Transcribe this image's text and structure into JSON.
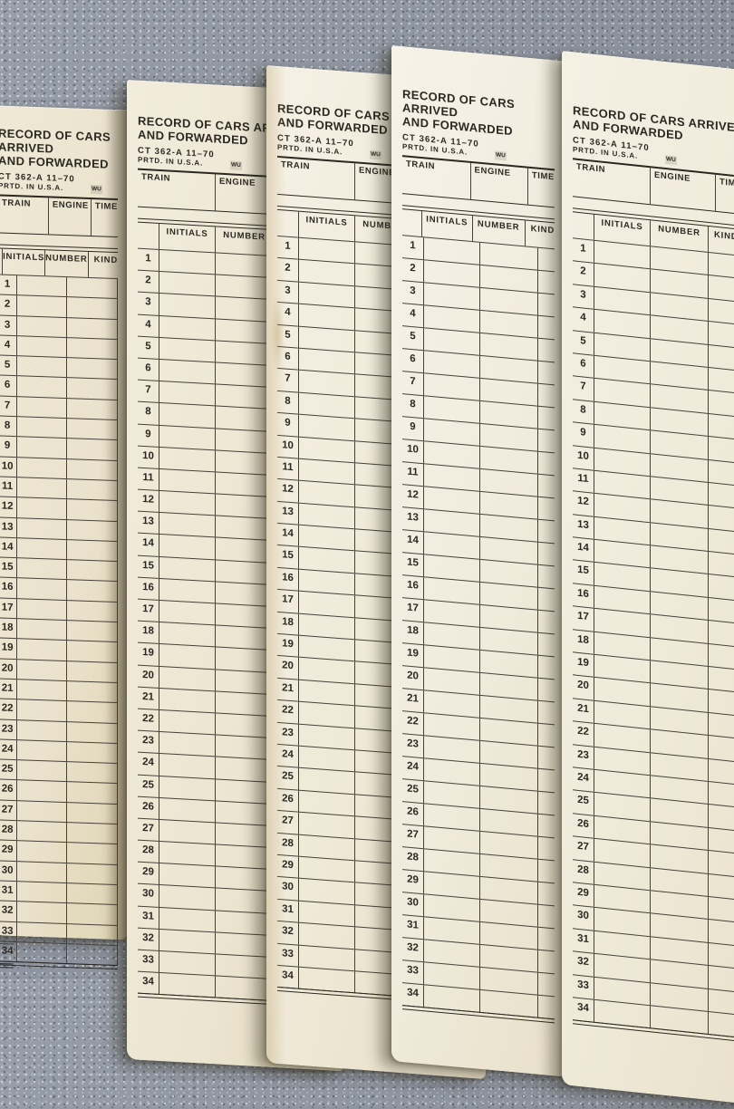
{
  "form": {
    "title_line1": "RECORD OF CARS ARRIVED",
    "title_line2": "AND FORWARDED",
    "form_number": "CT 362-A  11–70",
    "printed_in": "PRTD. IN U.S.A.",
    "union_mark": "WU",
    "fields": {
      "train": "TRAIN",
      "engine": "ENGINE",
      "time": "TIME"
    },
    "columns": {
      "initials": "INITIALS",
      "number": "NUMBER",
      "kind": "KIND"
    },
    "row_numbers": [
      1,
      2,
      3,
      4,
      5,
      6,
      7,
      8,
      9,
      10,
      11,
      12,
      13,
      14,
      15,
      16,
      17,
      18,
      19,
      20,
      21,
      22,
      23,
      24,
      25,
      26,
      27,
      28,
      29,
      30,
      31,
      32,
      33,
      34
    ]
  },
  "colors": {
    "paper": "#efe9d7",
    "paper_aged": "#ded3b2",
    "ink": "#2b2822",
    "rule_line": "#45413a",
    "carpet": "#8f96a2"
  }
}
